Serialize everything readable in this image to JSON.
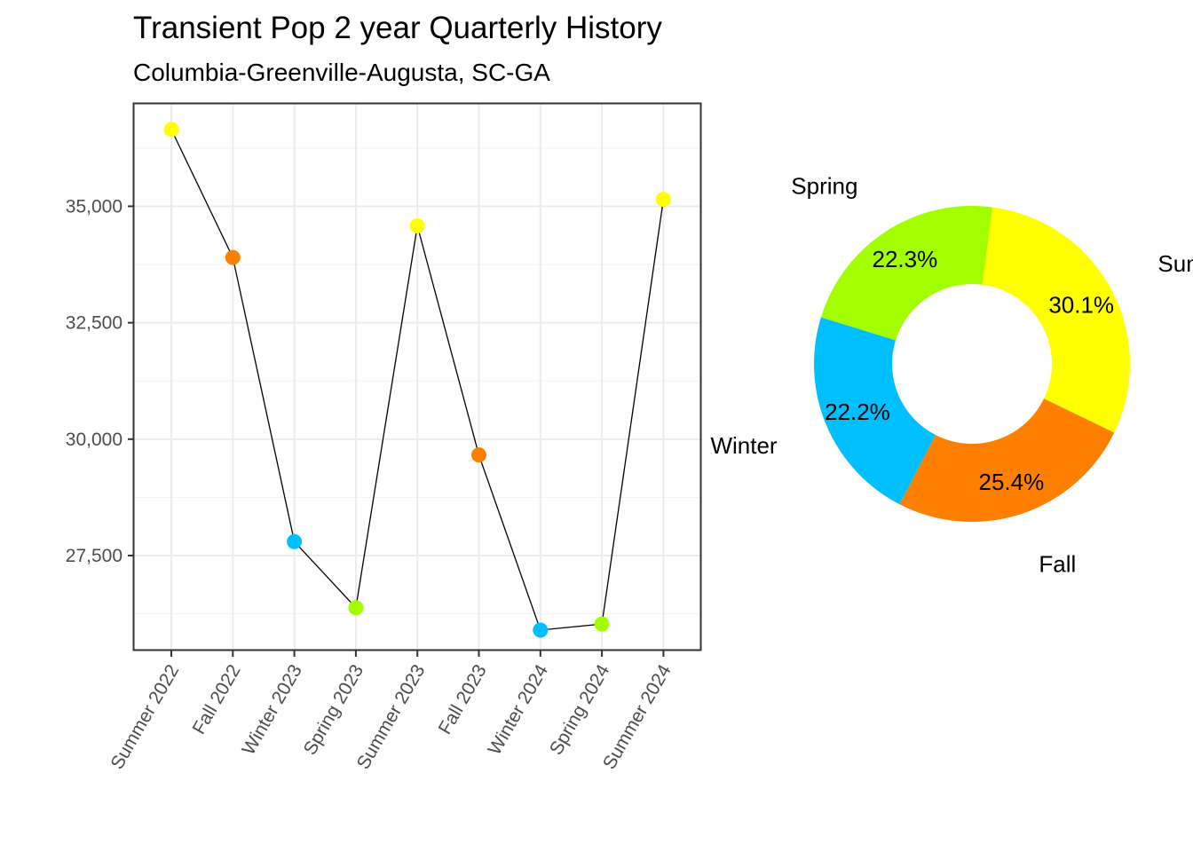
{
  "title": "Transient Pop 2 year Quarterly History",
  "subtitle": "Columbia-Greenville-Augusta, SC-GA",
  "season_colors": {
    "Summer": "#FFFF00",
    "Fall": "#FF7F00",
    "Winter": "#00BFFF",
    "Spring": "#A3FF00"
  },
  "chart_data": [
    {
      "type": "line",
      "categories": [
        "Summer 2022",
        "Fall 2022",
        "Winter 2023",
        "Spring 2023",
        "Summer 2023",
        "Fall 2023",
        "Winter 2024",
        "Spring 2024",
        "Summer 2024"
      ],
      "seasons": [
        "Summer",
        "Fall",
        "Winter",
        "Spring",
        "Summer",
        "Fall",
        "Winter",
        "Spring",
        "Summer"
      ],
      "values": [
        36650,
        33900,
        27800,
        26380,
        34580,
        29660,
        25900,
        26030,
        35150
      ],
      "yticks": [
        27500,
        30000,
        32500,
        35000
      ],
      "ytick_labels": [
        "27,500",
        "30,000",
        "32,500",
        "35,000"
      ],
      "ylim": [
        25480,
        37200
      ],
      "grid": true
    },
    {
      "type": "pie",
      "donut": true,
      "slices": [
        {
          "label": "Summer",
          "value": 30.1,
          "text": "30.1%"
        },
        {
          "label": "Fall",
          "value": 25.4,
          "text": "25.4%"
        },
        {
          "label": "Winter",
          "value": 22.2,
          "text": "22.2%"
        },
        {
          "label": "Spring",
          "value": 22.3,
          "text": "22.3%"
        }
      ]
    }
  ]
}
